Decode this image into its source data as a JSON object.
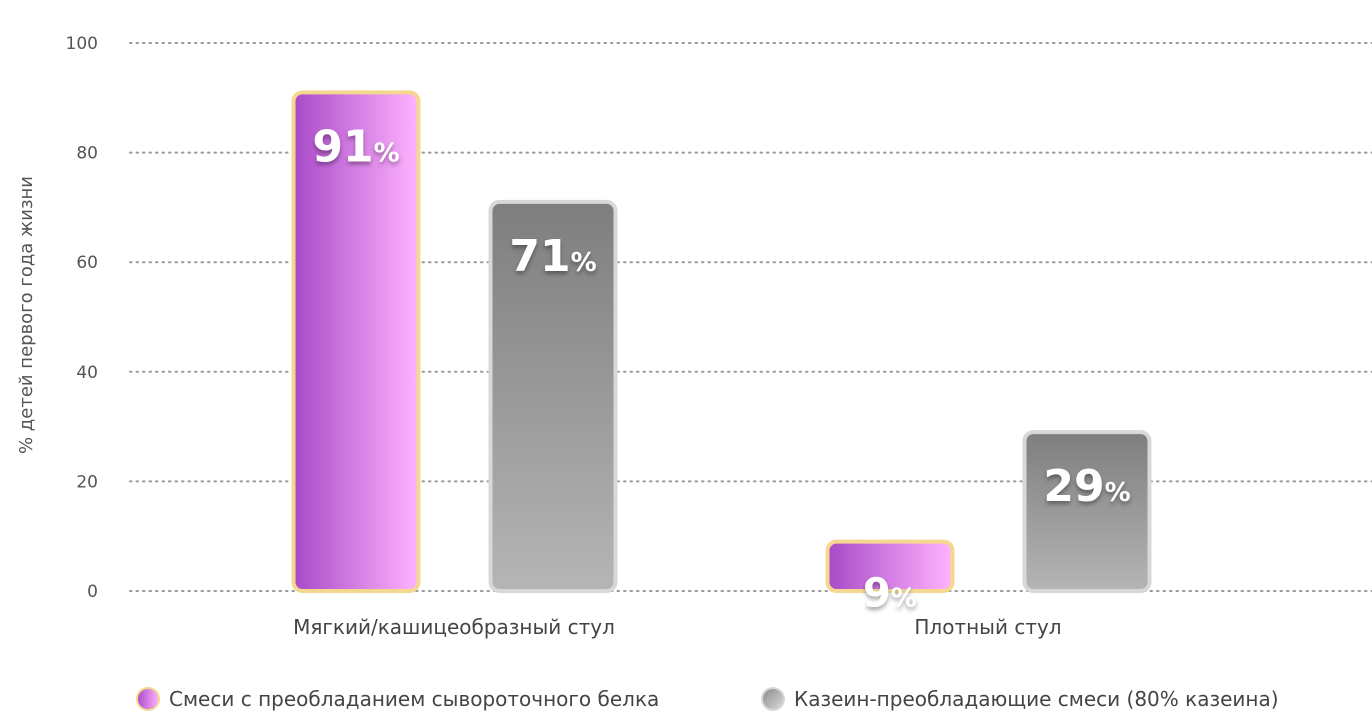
{
  "chart_data": {
    "type": "bar",
    "title": "",
    "xlabel": "",
    "ylabel": "% детей первого года жизни",
    "ylim": [
      0,
      100
    ],
    "yticks": [
      0,
      20,
      40,
      60,
      80,
      100
    ],
    "grid": true,
    "legend_position": "bottom",
    "categories": [
      "Мягкий/кашицеобразный стул",
      "Плотный стул"
    ],
    "series": [
      {
        "name": "Смеси с преобладанием сывороточного белка",
        "values": [
          91,
          9
        ],
        "labels": [
          "91",
          "9"
        ],
        "color_from": "#a84ac8",
        "color_to": "#ffb3ff",
        "border": "#f5d890"
      },
      {
        "name": "Казеин-преобладающие смеси (80% казеина)",
        "values": [
          71,
          29
        ],
        "labels": [
          "71",
          "29"
        ],
        "color_from": "#7e7e7e",
        "color_to": "#b5b5b5",
        "border": "#d8d8d8"
      }
    ],
    "value_suffix": "%"
  }
}
